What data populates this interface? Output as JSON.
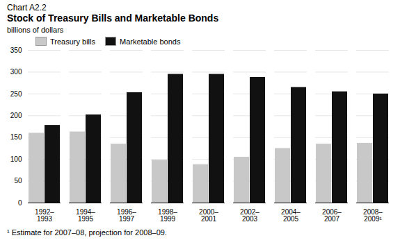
{
  "chart_data": {
    "type": "bar",
    "subtitle": "Chart A2.2",
    "title": "Stock of Treasury Bills and Marketable Bonds",
    "ylabel": "billions of dollars",
    "annotations": [
      "¹ Estimate for 2007–08, projection for 2008–09."
    ],
    "categories": [
      "1992–\n1993",
      "1994–\n1995",
      "1996–\n1997",
      "1998–\n1999",
      "2000–\n2001",
      "2002–\n2003",
      "2004–\n2005",
      "2006–\n2007",
      "2008–\n2009¹"
    ],
    "series": [
      {
        "name": "Treasury bills",
        "color": "#c8c8c8",
        "values": [
          160,
          163,
          135,
          98,
          88,
          105,
          125,
          135,
          137
        ]
      },
      {
        "name": "Marketable bonds",
        "color": "#111111",
        "values": [
          178,
          202,
          253,
          295,
          295,
          288,
          265,
          255,
          250
        ]
      }
    ],
    "ylim": [
      0,
      350
    ],
    "yticks": [
      0,
      50,
      100,
      150,
      200,
      250,
      300,
      350
    ],
    "grid": true,
    "legend": "upper left"
  }
}
